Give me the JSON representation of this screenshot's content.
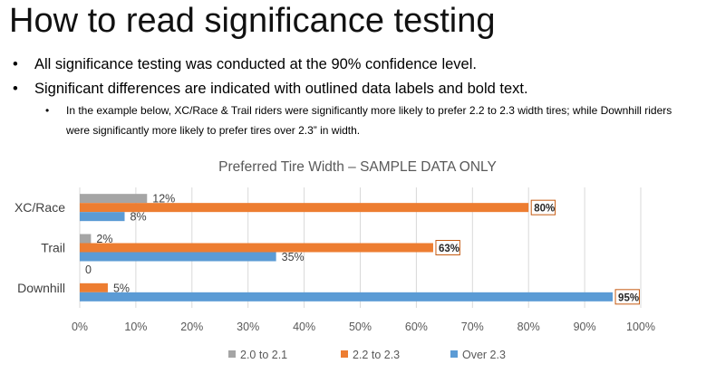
{
  "slide": {
    "title": "How to read significance testing",
    "bullets": [
      "All significance testing was conducted at the 90% confidence level.",
      "Significant differences are indicated with outlined data labels and bold text."
    ],
    "sub_bullet": "In the example below, XC/Race & Trail riders were significantly more likely to prefer 2.2 to 2.3 width tires; while Downhill riders were significantly more likely to prefer tires over 2.3” in width.",
    "bullet_char": "•"
  },
  "chart_data": {
    "type": "bar",
    "orientation": "horizontal",
    "title": "Preferred Tire Width – SAMPLE DATA ONLY",
    "categories": [
      "XC/Race",
      "Trail",
      "Downhill"
    ],
    "xlim": [
      0,
      100
    ],
    "x_ticks": [
      "0%",
      "10%",
      "20%",
      "30%",
      "40%",
      "50%",
      "60%",
      "70%",
      "80%",
      "90%",
      "100%"
    ],
    "grid": true,
    "legend_position": "bottom",
    "series": [
      {
        "name": "2.0 to 2.1",
        "color": "#a5a5a5",
        "values": [
          12,
          2,
          0
        ],
        "labels": [
          "12%",
          "2%",
          "0"
        ],
        "significant": [
          false,
          false,
          false
        ]
      },
      {
        "name": "2.2 to 2.3",
        "color": "#ed7d31",
        "values": [
          80,
          63,
          5
        ],
        "labels": [
          "80%",
          "63%",
          "5%"
        ],
        "significant": [
          true,
          true,
          false
        ]
      },
      {
        "name": "Over 2.3",
        "color": "#5b9bd5",
        "values": [
          8,
          35,
          95
        ],
        "labels": [
          "8%",
          "35%",
          "95%"
        ],
        "significant": [
          false,
          false,
          true
        ]
      }
    ]
  }
}
